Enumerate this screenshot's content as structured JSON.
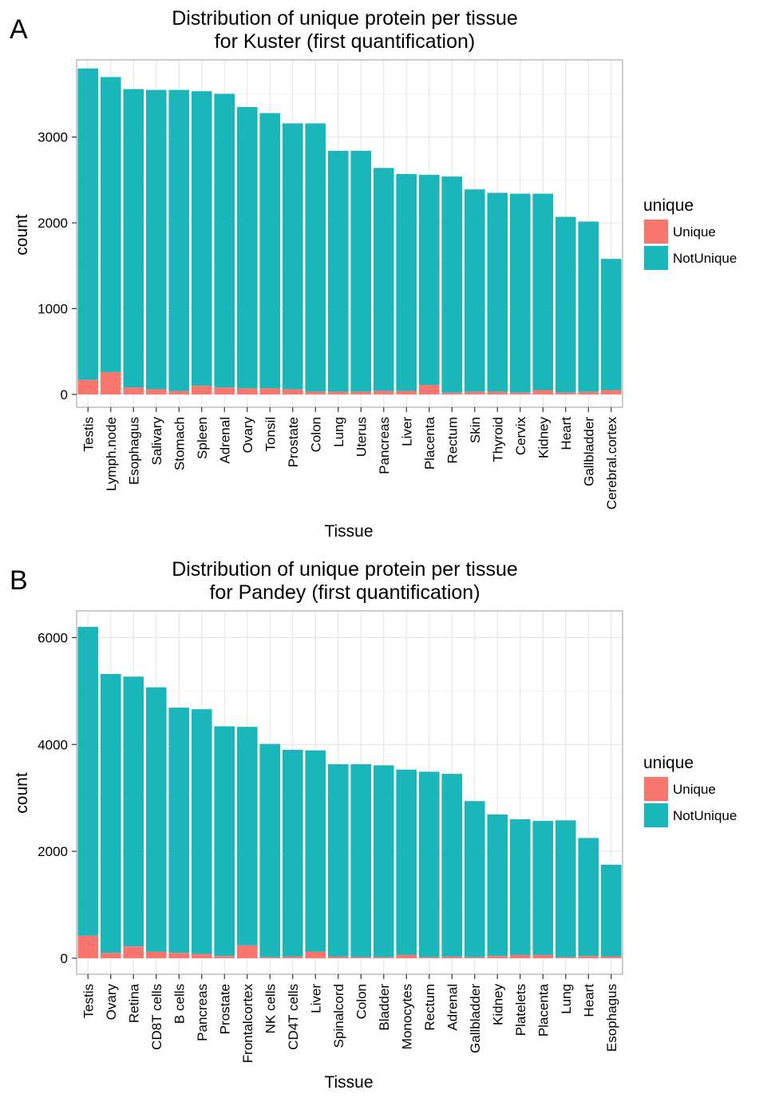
{
  "colors": {
    "unique": "#F8766D",
    "not_unique": "#1BB6B9"
  },
  "chart_data": [
    {
      "panel": "A",
      "type": "bar",
      "stacked": true,
      "title": [
        "Distribution of unique protein per tissue",
        "for Kuster (first quantification)"
      ],
      "xlabel": "Tissue",
      "ylabel": "count",
      "ylim": [
        -150,
        3900
      ],
      "yticks": [
        0,
        1000,
        2000,
        3000
      ],
      "grid": true,
      "legend": {
        "title": "unique",
        "position": "right",
        "entries": [
          "Unique",
          "NotUnique"
        ]
      },
      "categories": [
        "Testis",
        "Lymph.node",
        "Esophagus",
        "Salivary",
        "Stomach",
        "Spleen",
        "Adrenal",
        "Ovary",
        "Tonsil",
        "Prostate",
        "Colon",
        "Lung",
        "Uterus",
        "Pancreas",
        "Liver",
        "Placenta",
        "Rectum",
        "Skin",
        "Thyroid",
        "Cervix",
        "Kidney",
        "Heart",
        "Gallbladder",
        "Cerebral.cortex"
      ],
      "series": [
        {
          "name": "Unique",
          "values": [
            170,
            260,
            80,
            60,
            40,
            100,
            80,
            70,
            70,
            60,
            30,
            30,
            30,
            40,
            40,
            110,
            20,
            30,
            30,
            20,
            50,
            20,
            30,
            50
          ]
        },
        {
          "name": "NotUnique",
          "values": [
            3630,
            3440,
            3480,
            3490,
            3510,
            3435,
            3425,
            3280,
            3210,
            3100,
            3130,
            2810,
            2810,
            2600,
            2530,
            2450,
            2520,
            2360,
            2320,
            2320,
            2290,
            2050,
            1985,
            1530
          ]
        }
      ]
    },
    {
      "panel": "B",
      "type": "bar",
      "stacked": true,
      "title": [
        "Distribution of unique protein per tissue",
        "for Pandey (first quantification)"
      ],
      "xlabel": "Tissue",
      "ylabel": "count",
      "ylim": [
        -300,
        6500
      ],
      "yticks": [
        0,
        2000,
        4000,
        6000
      ],
      "grid": true,
      "legend": {
        "title": "unique",
        "position": "right",
        "entries": [
          "Unique",
          "NotUnique"
        ]
      },
      "categories": [
        "Testis",
        "Ovary",
        "Retina",
        "CD8T cells",
        "B cells",
        "Pancreas",
        "Prostate",
        "Frontalcortex",
        "NK cells",
        "CD4T cells",
        "Liver",
        "Spinalcord",
        "Colon",
        "Bladder",
        "Monocytes",
        "Rectum",
        "Adrenal",
        "Gallbladder",
        "Kidney",
        "Platelets",
        "Placenta",
        "Lung",
        "Heart",
        "Esophagus"
      ],
      "series": [
        {
          "name": "Unique",
          "values": [
            420,
            100,
            220,
            120,
            100,
            80,
            40,
            240,
            20,
            30,
            120,
            30,
            20,
            20,
            60,
            20,
            30,
            20,
            40,
            60,
            60,
            20,
            40,
            30
          ]
        },
        {
          "name": "NotUnique",
          "values": [
            5780,
            5220,
            5050,
            4950,
            4590,
            4580,
            4300,
            4090,
            3990,
            3870,
            3770,
            3600,
            3610,
            3590,
            3470,
            3470,
            3420,
            2920,
            2650,
            2540,
            2510,
            2560,
            2210,
            1720
          ]
        }
      ]
    }
  ]
}
